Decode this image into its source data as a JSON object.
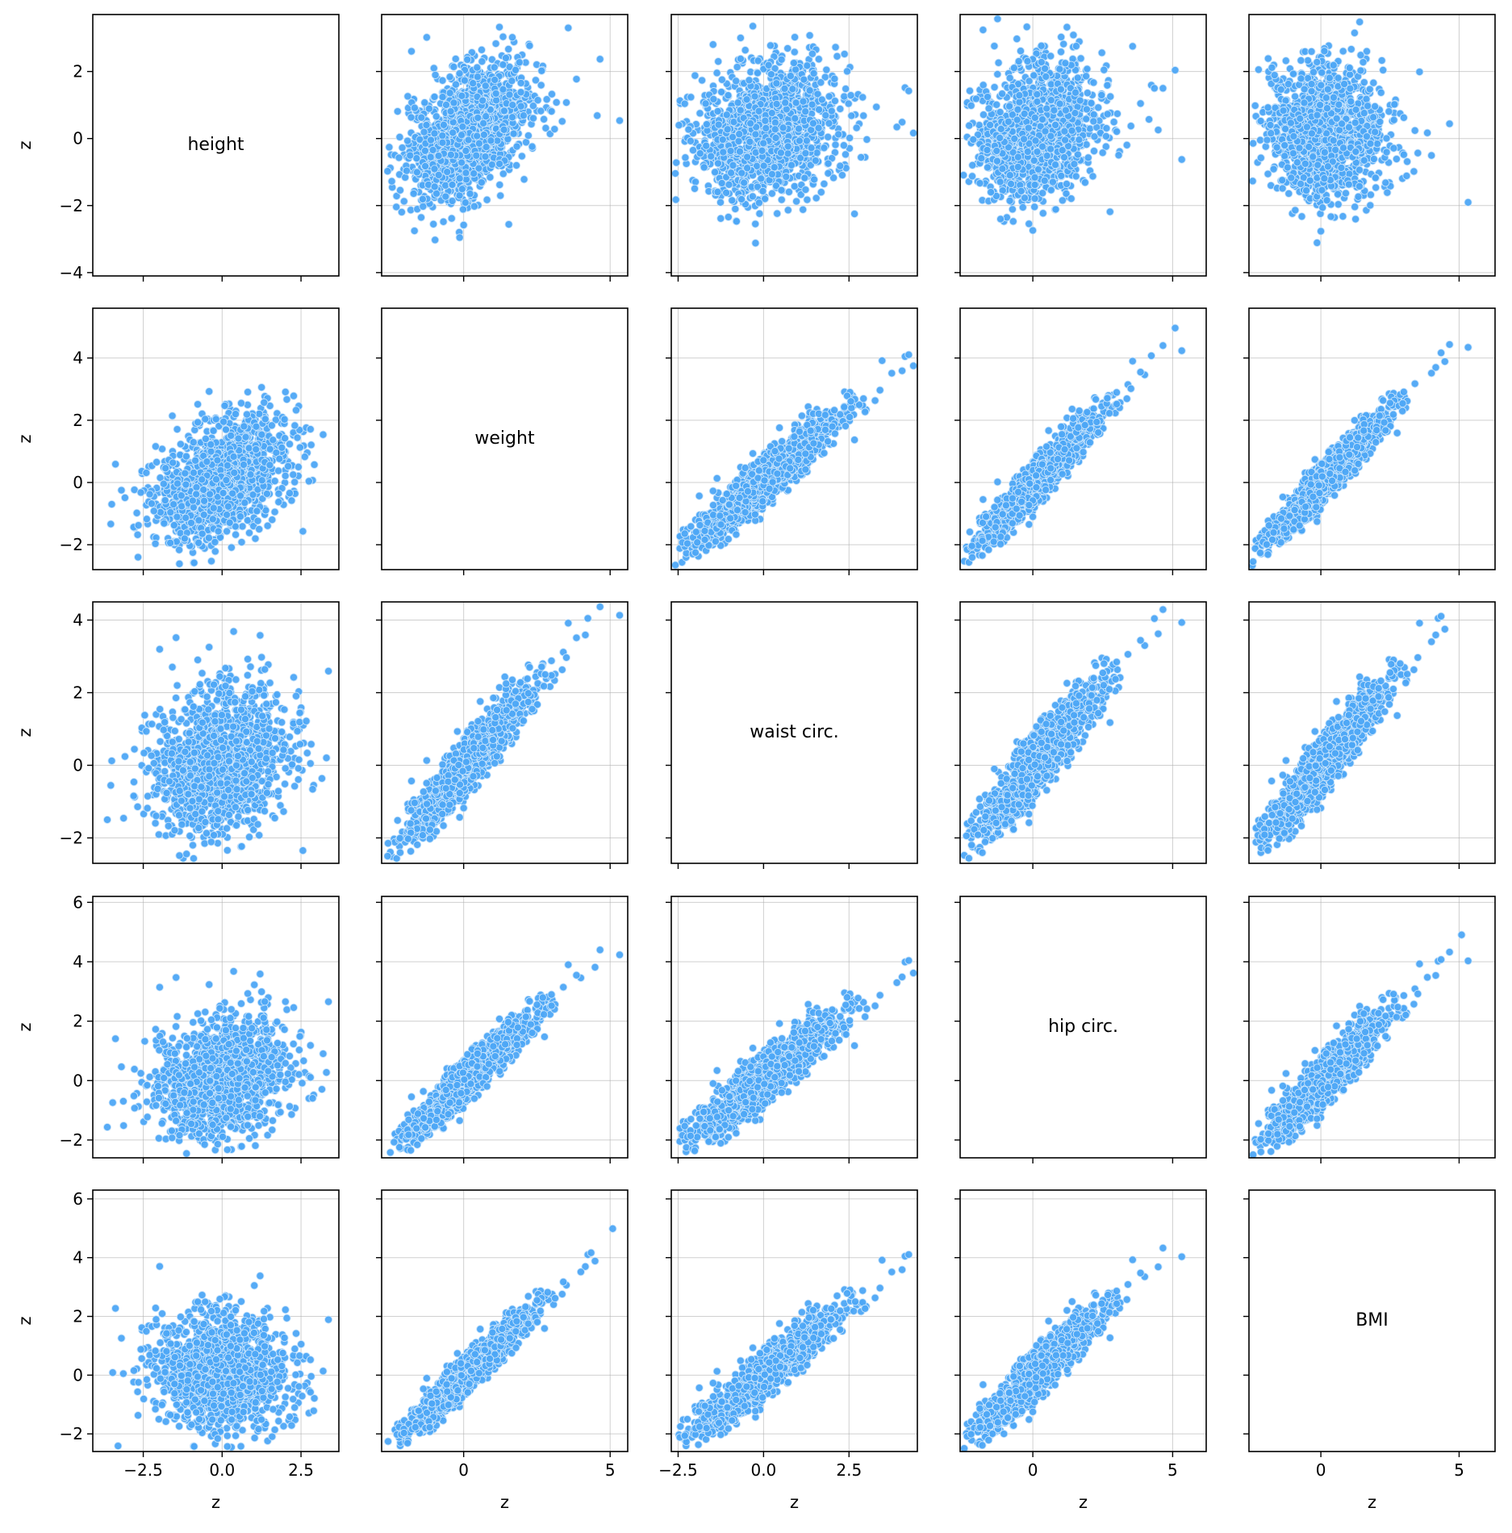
{
  "chart_data": {
    "type": "scatter",
    "layout": "pair-plot",
    "variables": [
      "height",
      "weight",
      "waist circ.",
      "hip circ.",
      "BMI"
    ],
    "xlabel": "z",
    "ylabel": "z",
    "grid": true,
    "marker_color": "#4da6f5",
    "marker_edge_color": "#c9e4fb",
    "axes": [
      {
        "variable": "height",
        "range": [
          -4.1,
          3.7
        ],
        "ticks": [
          -2.5,
          0.0,
          2.5
        ],
        "tick_labels": [
          "−2.5",
          "0.0",
          "2.5"
        ],
        "y_ticks": [
          -4,
          -2,
          0,
          2
        ],
        "y_tick_labels": [
          "−4",
          "−2",
          "0",
          "2"
        ],
        "sample_center": [
          0,
          0.2
        ]
      },
      {
        "variable": "weight",
        "range": [
          -2.8,
          5.6
        ],
        "ticks": [
          0,
          5
        ],
        "tick_labels": [
          "0",
          "5"
        ],
        "y_ticks": [
          -2,
          0,
          2,
          4
        ],
        "y_tick_labels": [
          "−2",
          "0",
          "2",
          "4"
        ],
        "sample_center": [
          0.2,
          0.1
        ]
      },
      {
        "variable": "waist circ.",
        "range": [
          -2.7,
          4.5
        ],
        "ticks": [
          -2.5,
          0.0,
          2.5
        ],
        "tick_labels": [
          "−2.5",
          "0.0",
          "2.5"
        ],
        "y_ticks": [
          -2,
          0,
          2,
          4
        ],
        "y_tick_labels": [
          "−2",
          "0",
          "2",
          "4"
        ],
        "sample_center": [
          0.1,
          0.1
        ]
      },
      {
        "variable": "hip circ.",
        "range": [
          -2.6,
          6.2
        ],
        "ticks": [
          0,
          5
        ],
        "tick_labels": [
          "0",
          "5"
        ],
        "y_ticks": [
          -2,
          0,
          2,
          4,
          6
        ],
        "y_tick_labels": [
          "−2",
          "0",
          "2",
          "4",
          "6"
        ],
        "sample_center": [
          0.2,
          0.1
        ]
      },
      {
        "variable": "BMI",
        "range": [
          -2.6,
          6.3
        ],
        "ticks": [
          0,
          5
        ],
        "tick_labels": [
          "0",
          "5"
        ],
        "y_ticks": [
          -2,
          0,
          2,
          4,
          6
        ],
        "y_tick_labels": [
          "−2",
          "0",
          "2",
          "4",
          "6"
        ],
        "sample_center": [
          0.2,
          0.1
        ]
      }
    ],
    "correlation_matrix": [
      [
        1.0,
        0.42,
        0.2,
        0.22,
        -0.02
      ],
      [
        0.42,
        1.0,
        0.93,
        0.94,
        0.95
      ],
      [
        0.2,
        0.93,
        1.0,
        0.91,
        0.93
      ],
      [
        0.22,
        0.94,
        0.91,
        1.0,
        0.92
      ],
      [
        -0.02,
        0.95,
        0.93,
        0.92,
        1.0
      ]
    ],
    "points_per_panel": 1400
  }
}
